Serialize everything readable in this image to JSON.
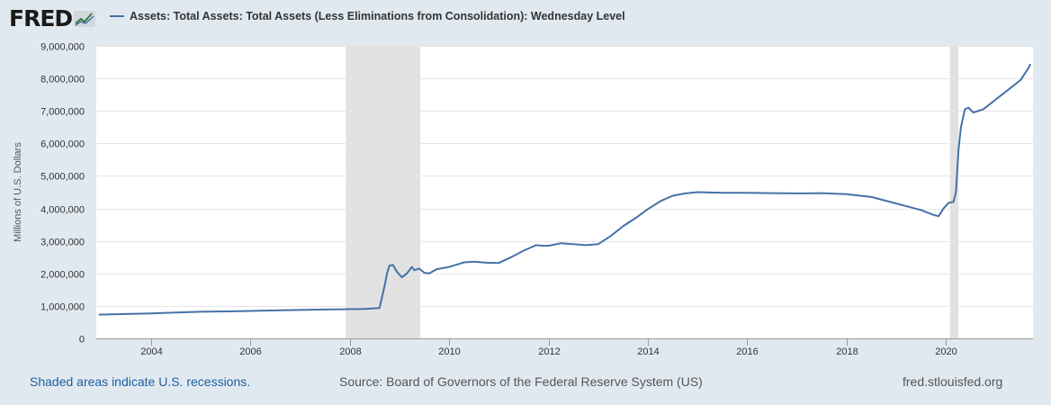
{
  "logo": {
    "text": "FRED"
  },
  "legend": {
    "label": "Assets: Total Assets: Total Assets (Less Eliminations from Consolidation): Wednesday Level"
  },
  "footer": {
    "recession_note": "Shaded areas indicate U.S. recessions.",
    "source": "Source: Board of Governors of the Federal Reserve System (US)",
    "site": "fred.stlouisfed.org"
  },
  "colors": {
    "line": "#4572a7",
    "recession": "#e1e1e1",
    "background": "#e1e9f0",
    "plot_background": "#ffffff",
    "grid": "#e6e6e6"
  },
  "chart_data": {
    "type": "line",
    "title": "",
    "xlabel": "",
    "ylabel": "Millions of U.S. Dollars",
    "xlim": [
      2002.9,
      2021.75
    ],
    "ylim": [
      0,
      9000000
    ],
    "grid": true,
    "x_ticks": [
      2004,
      2006,
      2008,
      2010,
      2012,
      2014,
      2016,
      2018,
      2020
    ],
    "x_tick_labels": [
      "2004",
      "2006",
      "2008",
      "2010",
      "2012",
      "2014",
      "2016",
      "2018",
      "2020"
    ],
    "y_ticks": [
      0,
      1000000,
      2000000,
      3000000,
      4000000,
      5000000,
      6000000,
      7000000,
      8000000,
      9000000
    ],
    "y_tick_labels": [
      "0",
      "1,000,000",
      "2,000,000",
      "3,000,000",
      "4,000,000",
      "5,000,000",
      "6,000,000",
      "7,000,000",
      "8,000,000",
      "9,000,000"
    ],
    "recessions": [
      [
        2007.92,
        2009.42
      ],
      [
        2020.08,
        2020.25
      ]
    ],
    "series": [
      {
        "name": "Assets: Total Assets: Total Assets (Less Eliminations from Consolidation): Wednesday Level",
        "x": [
          2002.95,
          2003.5,
          2004.0,
          2004.5,
          2005.0,
          2005.5,
          2006.0,
          2006.5,
          2007.0,
          2007.5,
          2008.0,
          2008.3,
          2008.6,
          2008.7,
          2008.75,
          2008.8,
          2008.87,
          2008.95,
          2009.05,
          2009.15,
          2009.25,
          2009.3,
          2009.4,
          2009.5,
          2009.6,
          2009.75,
          2010.0,
          2010.3,
          2010.5,
          2010.75,
          2011.0,
          2011.25,
          2011.5,
          2011.75,
          2011.9,
          2012.0,
          2012.25,
          2012.5,
          2012.75,
          2013.0,
          2013.25,
          2013.5,
          2013.75,
          2014.0,
          2014.25,
          2014.5,
          2014.75,
          2015.0,
          2015.5,
          2016.0,
          2016.5,
          2017.0,
          2017.5,
          2018.0,
          2018.5,
          2019.0,
          2019.5,
          2019.75,
          2019.85,
          2019.95,
          2020.05,
          2020.15,
          2020.2,
          2020.25,
          2020.3,
          2020.38,
          2020.45,
          2020.55,
          2020.75,
          2021.0,
          2021.25,
          2021.5,
          2021.65,
          2021.7
        ],
        "values": [
          730000,
          750000,
          770000,
          795000,
          820000,
          830000,
          845000,
          860000,
          875000,
          890000,
          900000,
          905000,
          935000,
          1600000,
          2000000,
          2240000,
          2260000,
          2050000,
          1880000,
          2000000,
          2200000,
          2100000,
          2150000,
          2020000,
          2000000,
          2130000,
          2200000,
          2340000,
          2360000,
          2330000,
          2320000,
          2500000,
          2700000,
          2870000,
          2850000,
          2850000,
          2930000,
          2900000,
          2870000,
          2900000,
          3150000,
          3450000,
          3700000,
          3980000,
          4220000,
          4390000,
          4460000,
          4500000,
          4480000,
          4480000,
          4470000,
          4460000,
          4470000,
          4440000,
          4350000,
          4150000,
          3950000,
          3800000,
          3760000,
          4000000,
          4170000,
          4200000,
          4500000,
          5800000,
          6500000,
          7050000,
          7100000,
          6950000,
          7050000,
          7350000,
          7650000,
          7950000,
          8300000,
          8440000
        ]
      }
    ]
  }
}
